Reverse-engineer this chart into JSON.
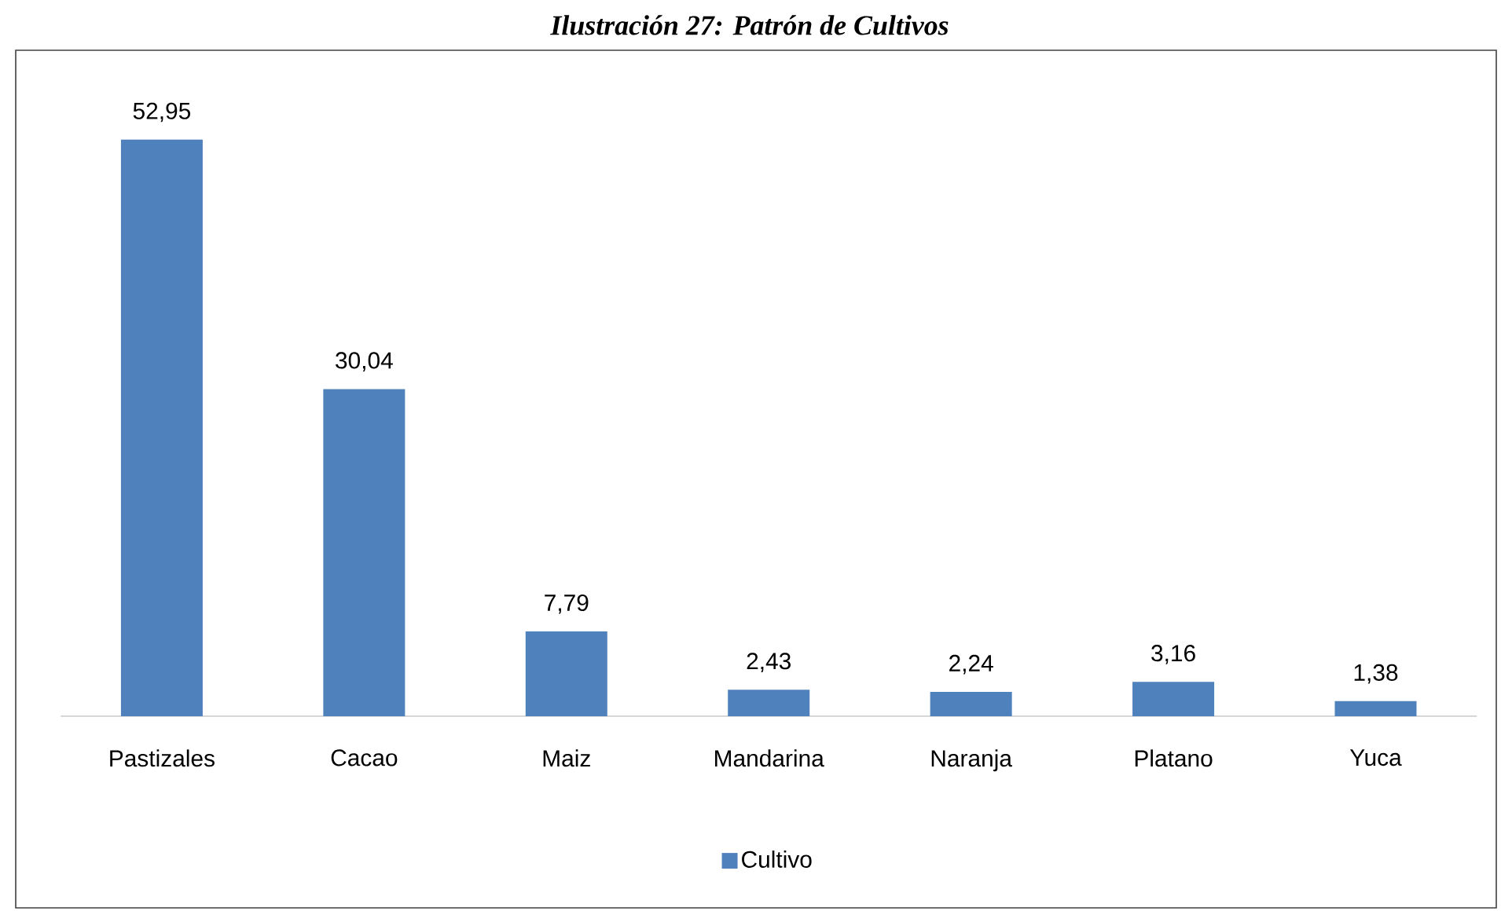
{
  "chart_data": {
    "type": "bar",
    "title": "Ilustración 27: Patrón de Cultivos",
    "categories": [
      "Pastizales",
      "Cacao",
      "Maiz",
      "Mandarina",
      "Naranja",
      "Platano",
      "Yuca"
    ],
    "series": [
      {
        "name": "Cultivo",
        "color": "#4f81bd",
        "values": [
          52.95,
          30.04,
          7.79,
          2.43,
          2.24,
          3.16,
          1.38
        ],
        "value_labels": [
          "52,95",
          "30,04",
          "7,79",
          "2,43",
          "2,24",
          "3,16",
          "1,38"
        ]
      }
    ],
    "legend": "bottom",
    "tick_labels": "x"
  }
}
